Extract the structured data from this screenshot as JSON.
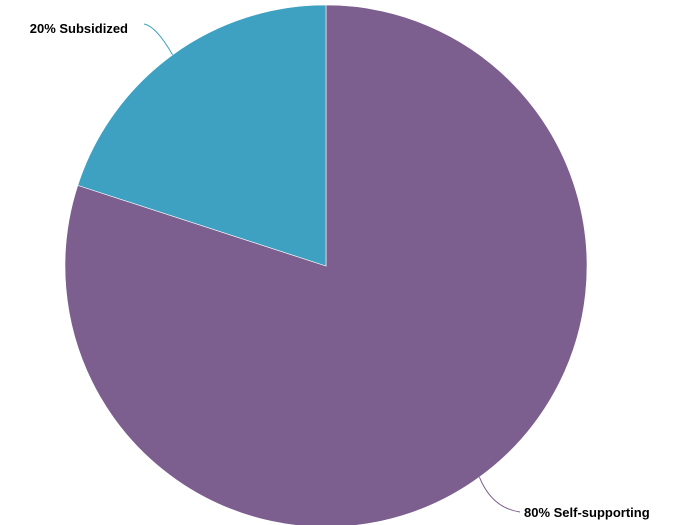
{
  "chart_data": {
    "type": "pie",
    "title": "",
    "start_angle_deg": 0,
    "direction": "clockwise",
    "slices": [
      {
        "label": "80% Self-supporting",
        "value": 80,
        "color": "#7c5f8f"
      },
      {
        "label": "20% Subsidized",
        "value": 20,
        "color": "#3fa1c2"
      }
    ]
  }
}
